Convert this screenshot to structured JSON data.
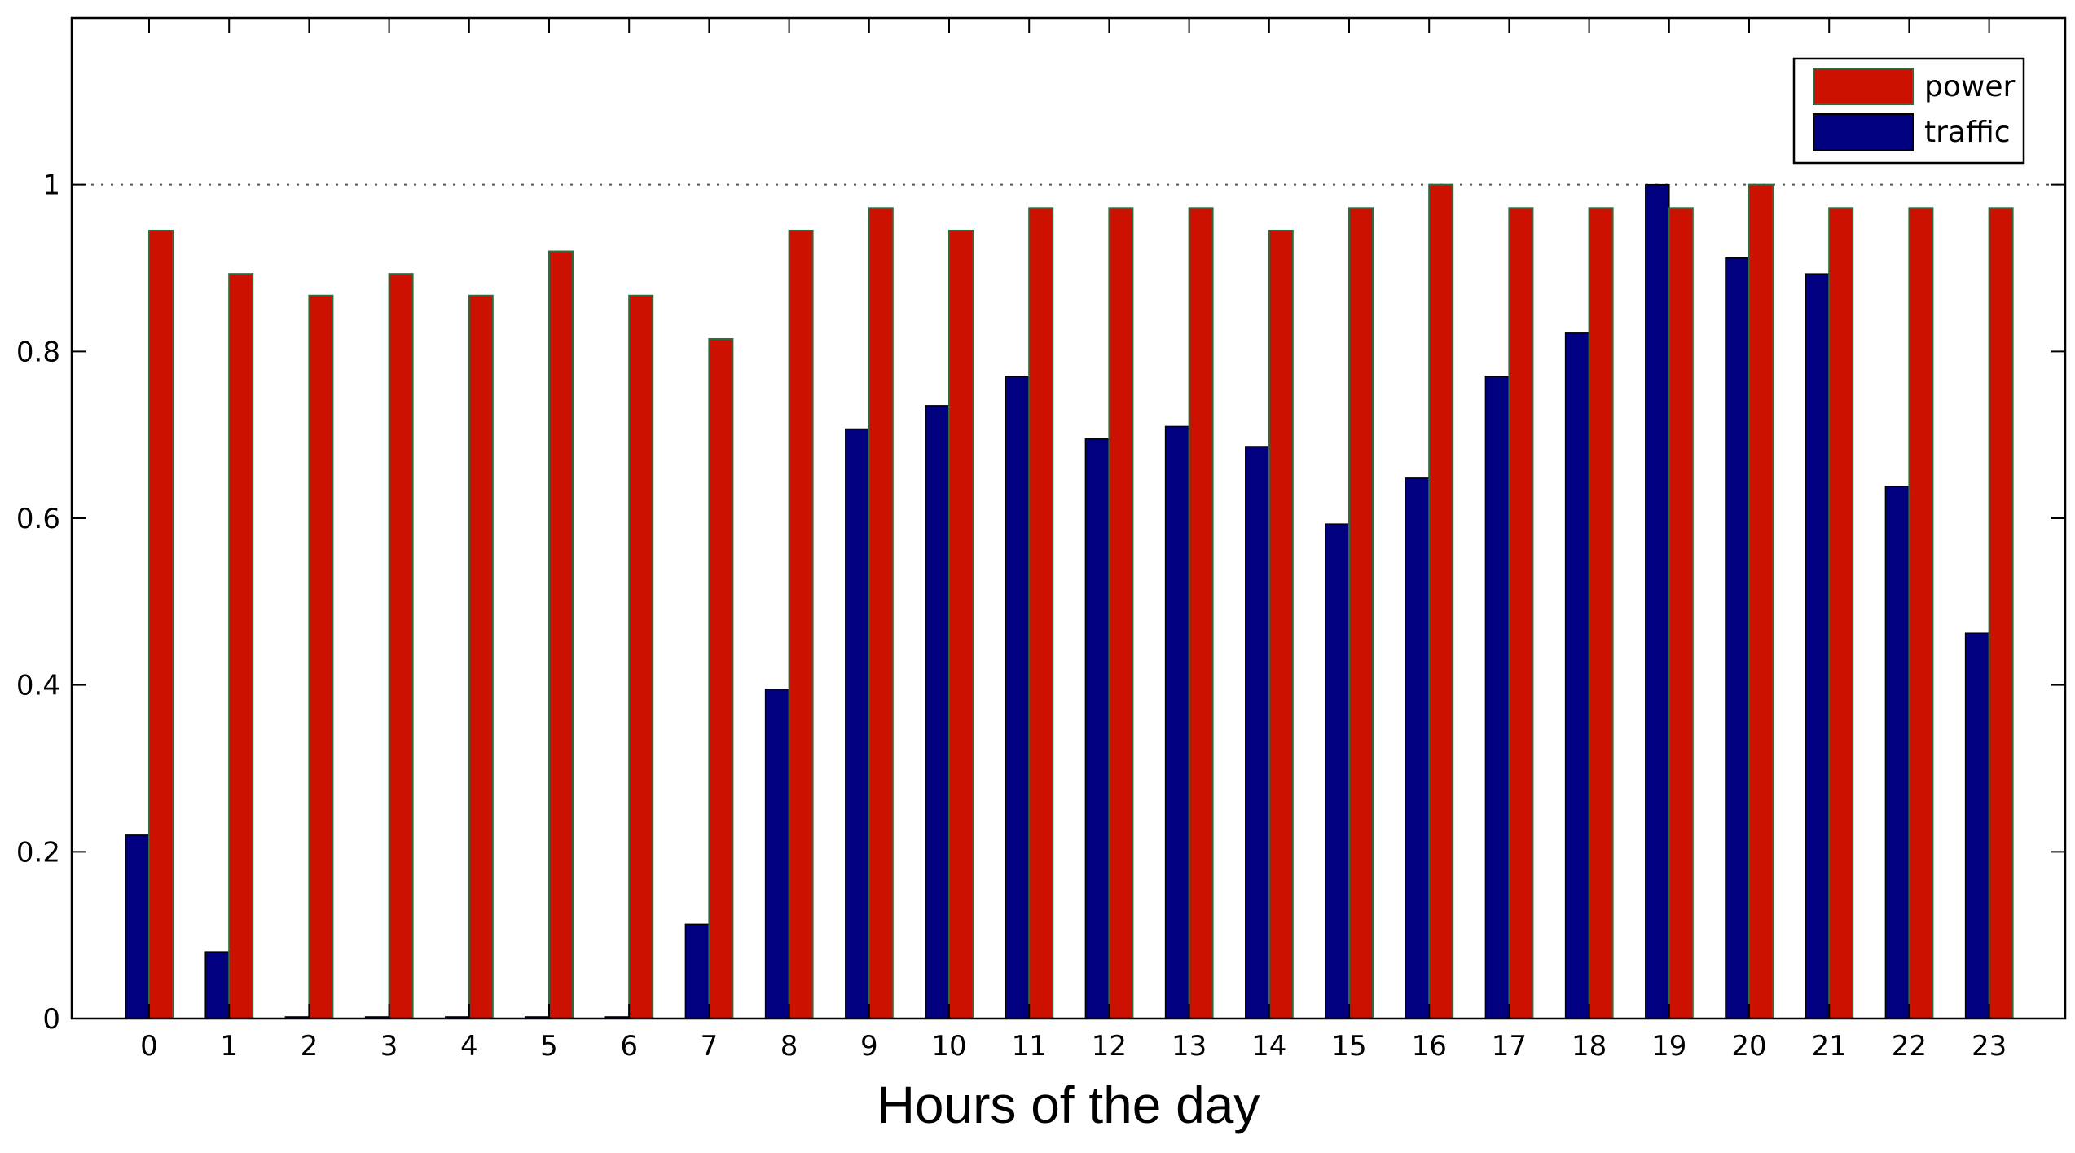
{
  "chart_data": {
    "type": "bar",
    "title": "",
    "xlabel": "Hours of the day",
    "ylabel": "",
    "categories": [
      "0",
      "1",
      "2",
      "3",
      "4",
      "5",
      "6",
      "7",
      "8",
      "9",
      "10",
      "11",
      "12",
      "13",
      "14",
      "15",
      "16",
      "17",
      "18",
      "19",
      "20",
      "21",
      "22",
      "23"
    ],
    "series": [
      {
        "name": "traffic",
        "color": "#000080",
        "values": [
          0.22,
          0.08,
          0.002,
          0.002,
          0.002,
          0.002,
          0.002,
          0.113,
          0.395,
          0.707,
          0.735,
          0.77,
          0.695,
          0.71,
          0.686,
          0.593,
          0.648,
          0.77,
          0.822,
          1.0,
          0.912,
          0.893,
          0.638,
          0.462
        ]
      },
      {
        "name": "power",
        "color": "#cc1100",
        "values": [
          0.945,
          0.893,
          0.867,
          0.893,
          0.867,
          0.92,
          0.867,
          0.815,
          0.945,
          0.972,
          0.945,
          0.972,
          0.972,
          0.972,
          0.945,
          0.972,
          1.0,
          0.972,
          0.972,
          0.972,
          1.0,
          0.972,
          0.972,
          0.972
        ]
      }
    ],
    "ylim": [
      0,
      1.2
    ],
    "yticks": [
      0,
      0.2,
      0.4,
      0.6,
      0.8,
      1
    ],
    "ytick_labels": [
      "0",
      "0.2",
      "0.4",
      "0.6",
      "0.8",
      "1"
    ],
    "reference_line": {
      "y": 1,
      "style": "dotted"
    },
    "legend": {
      "position": "top-right",
      "entries": [
        "power",
        "traffic"
      ]
    },
    "grid": false
  }
}
